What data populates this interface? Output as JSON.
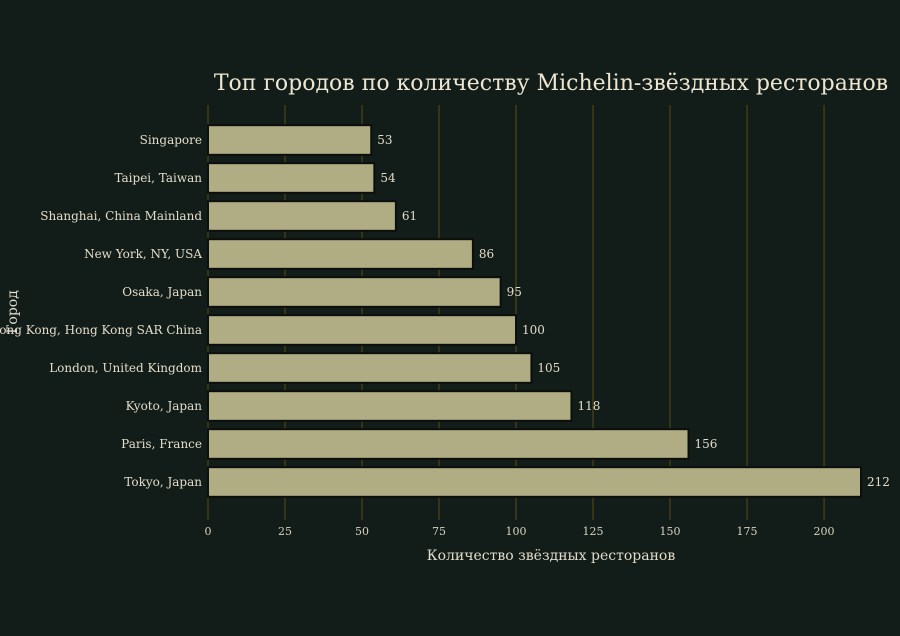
{
  "colors": {
    "background": "#121c18",
    "bar_fill": "#b0ad84",
    "bar_stroke": "#0b0f0d",
    "grid": "#5c4d14",
    "text": "#e2dccb"
  },
  "chart_data": {
    "type": "bar",
    "orientation": "horizontal",
    "title": "Топ городов по количеству Michelin-звёздных ресторанов",
    "xlabel": "Количество звёздных ресторанов",
    "ylabel": "Город",
    "categories": [
      "Singapore",
      "Taipei, Taiwan",
      "Shanghai, China Mainland",
      "New York, NY, USA",
      "Osaka, Japan",
      "Hong Kong, Hong Kong SAR China",
      "London, United Kingdom",
      "Kyoto, Japan",
      "Paris, France",
      "Tokyo, Japan"
    ],
    "values": [
      53,
      54,
      61,
      86,
      95,
      100,
      105,
      118,
      156,
      212
    ],
    "xlim": [
      0,
      212
    ],
    "xticks": [
      0,
      25,
      50,
      75,
      100,
      125,
      150,
      175,
      200
    ],
    "grid": "vertical",
    "legend": "none"
  }
}
